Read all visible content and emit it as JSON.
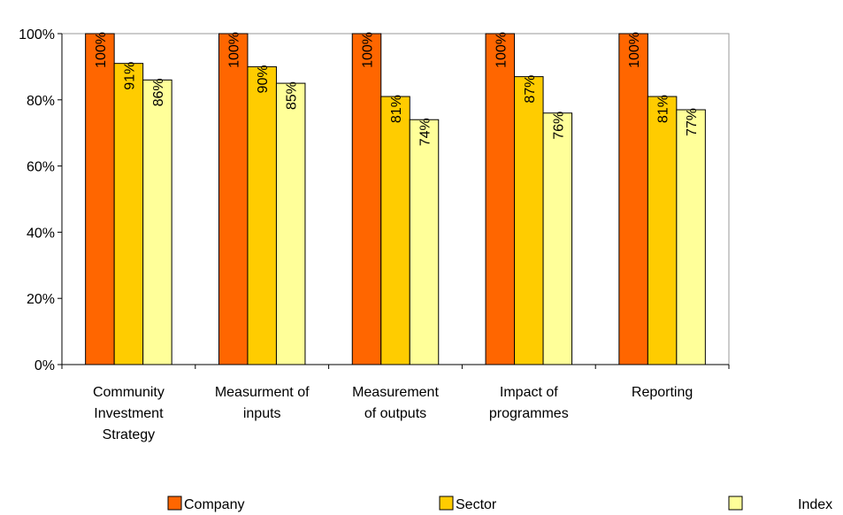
{
  "chart_data": {
    "type": "bar",
    "categories": [
      [
        "Community",
        "Investment",
        "Strategy"
      ],
      [
        "Measurment of",
        "inputs"
      ],
      [
        "Measurement",
        "of outputs"
      ],
      [
        "Impact of",
        "programmes"
      ],
      [
        "Reporting"
      ]
    ],
    "series": [
      {
        "name": "Company",
        "values": [
          100,
          100,
          100,
          100,
          100
        ],
        "labels": [
          "100%",
          "100%",
          "100%",
          "100%",
          "100%"
        ],
        "color": "#FF6600"
      },
      {
        "name": "Sector",
        "values": [
          91,
          90,
          81,
          87,
          81
        ],
        "labels": [
          "91%",
          "90%",
          "81%",
          "87%",
          "81%"
        ],
        "color": "#FFCC00"
      },
      {
        "name": "Index",
        "values": [
          86,
          85,
          74,
          76,
          77
        ],
        "labels": [
          "86%",
          "85%",
          "74%",
          "76%",
          "77%"
        ],
        "color": "#FFFF99"
      }
    ],
    "yticks": [
      0,
      20,
      40,
      60,
      80,
      100
    ],
    "ytick_labels": [
      "0%",
      "20%",
      "40%",
      "60%",
      "80%",
      "100%"
    ],
    "ylim": [
      0,
      100
    ],
    "grid": false,
    "legend_position": "bottom",
    "title": "",
    "xlabel": "",
    "ylabel": ""
  }
}
